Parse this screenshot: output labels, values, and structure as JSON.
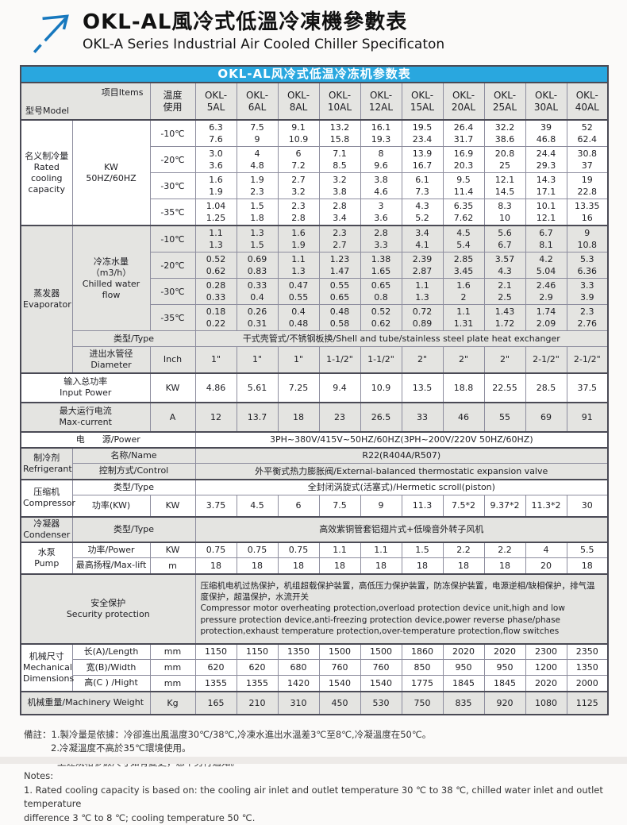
{
  "page": {
    "title_zh": "OKL-AL風冷式低溫冷凍機參數表",
    "title_en": "OKL-A Series Industrial Air Cooled Chiller Specificaton"
  },
  "colors": {
    "accent_blue": "#29a7df",
    "logo_blue": "#1778be",
    "row_gray": "#e4e4e1"
  },
  "table": {
    "banner": "OKL-AL风冷式低温冷冻机参数表",
    "header": {
      "model_label": "型号Model",
      "items_label": "项目Items",
      "temp_label": "温度\n使用",
      "models": [
        "OKL-\n5AL",
        "OKL-\n6AL",
        "OKL-\n8AL",
        "OKL-\n10AL",
        "OKL-\n12AL",
        "OKL-\n15AL",
        "OKL-\n20AL",
        "OKL-\n25AL",
        "OKL-\n30AL",
        "OKL-\n40AL"
      ]
    },
    "rated": {
      "label": "名义制冷量\nRated\ncooling\ncapacity",
      "unit": "KW\n50HZ/60HZ",
      "temps": [
        "-10℃",
        "-20℃",
        "-30℃",
        "-35℃"
      ],
      "r10": [
        "6.3\n7.6",
        "7.5\n9",
        "9.1\n10.9",
        "13.2\n15.8",
        "16.1\n19.3",
        "19.5\n23.4",
        "26.4\n31.7",
        "32.2\n38.6",
        "39\n46.8",
        "52\n62.4"
      ],
      "r20": [
        "3.0\n3.6",
        "4\n4.8",
        "6\n7.2",
        "7.1\n8.5",
        "8\n9.6",
        "13.9\n16.7",
        "16.9\n20.3",
        "20.8\n25",
        "24.4\n29.3",
        "30.8\n37"
      ],
      "r30": [
        "1.6\n1.9",
        "1.9\n2.3",
        "2.7\n3.2",
        "3.2\n3.8",
        "3.8\n4.6",
        "6.1\n7.3",
        "9.5\n11.4",
        "12.1\n14.5",
        "14.3\n17.1",
        "19\n22.8"
      ],
      "r35": [
        "1.04\n1.25",
        "1.5\n1.8",
        "2.3\n2.8",
        "2.8\n3.4",
        "3\n3.6",
        "4.3\n5.2",
        "6.35\n7.62",
        "8.3\n10",
        "10.1\n12.1",
        "13.35\n16"
      ]
    },
    "evaporator": {
      "label": "蒸发器\nEvaporator",
      "flow_label": "冷冻水量（m3/h）\nChilled water flow",
      "temps": [
        "-10℃",
        "-20℃",
        "-30℃",
        "-35℃"
      ],
      "f10": [
        "1.1\n1.3",
        "1.3\n1.5",
        "1.6\n1.9",
        "2.3\n2.7",
        "2.8\n3.3",
        "3.4\n4.1",
        "4.5\n5.4",
        "5.6\n6.7",
        "6.7\n8.1",
        "9\n10.8"
      ],
      "f20": [
        "0.52\n0.62",
        "0.69\n0.83",
        "1.1\n1.3",
        "1.23\n1.47",
        "1.38\n1.65",
        "2.39\n2.87",
        "2.85\n3.45",
        "3.57\n4.3",
        "4.2\n5.04",
        "5.3\n6.36"
      ],
      "f30": [
        "0.28\n0.33",
        "0.33\n0.4",
        "0.47\n0.55",
        "0.55\n0.65",
        "0.65\n0.8",
        "1.1\n1.3",
        "1.6\n2",
        "2.1\n2.5",
        "2.46\n2.9",
        "3.3\n3.9"
      ],
      "f35": [
        "0.18\n0.22",
        "0.26\n0.31",
        "0.4\n0.48",
        "0.48\n0.58",
        "0.52\n0.62",
        "0.72\n0.89",
        "1.1\n1.31",
        "1.43\n1.72",
        "1.74\n2.09",
        "2.3\n2.76"
      ],
      "type_label": "类型/Type",
      "type_value": "干式壳管式/不锈钢板换/Shell and tube/stainless steel plate heat exchanger",
      "diameter_label": "进出水管径\nDiameter",
      "diameter_unit": "Inch",
      "diameter_values": [
        "1\"",
        "1\"",
        "1\"",
        "1-1/2\"",
        "1-1/2\"",
        "2\"",
        "2\"",
        "2\"",
        "2-1/2\"",
        "2-1/2\""
      ]
    },
    "input_power": {
      "label": "输入总功率\nInput Power",
      "unit": "KW",
      "values": [
        "4.86",
        "5.61",
        "7.25",
        "9.4",
        "10.9",
        "13.5",
        "18.8",
        "22.55",
        "28.5",
        "37.5"
      ]
    },
    "max_current": {
      "label": "最大运行电流\nMax-current",
      "unit": "A",
      "values": [
        "12",
        "13.7",
        "18",
        "23",
        "26.5",
        "33",
        "46",
        "55",
        "69",
        "91"
      ]
    },
    "power_supply": {
      "label": "电　　源/Power",
      "value": "3PH~380V/415V~50HZ/60HZ(3PH~200V/220V  50HZ/60HZ)"
    },
    "refrigerant": {
      "label": "制冷剂\nRefrigerant",
      "name_label": "名称/Name",
      "name_value": "R22(R404A/R507)",
      "control_label": "控制方式/Control",
      "control_value": "外平衡式热力膨胀阀/External-balanced thermostatic expansion valve"
    },
    "compressor": {
      "label": "压缩机\nCompressor",
      "type_label": "类型/Type",
      "type_value": "全封闭涡旋式(活塞式)/Hermetic scroll(piston)",
      "power_label": "功率(KW)",
      "power_unit": "KW",
      "power_values": [
        "3.75",
        "4.5",
        "6",
        "7.5",
        "9",
        "11.3",
        "7.5*2",
        "9.37*2",
        "11.3*2",
        "30"
      ]
    },
    "condenser": {
      "label": "冷凝器\nCondenser",
      "type_label": "类型/Type",
      "type_value": "高效紫铜管套铝翅片式+低噪音外转子风机"
    },
    "pump": {
      "label": "水泵\nPump",
      "power_label": "功率/Power",
      "power_unit": "KW",
      "power_values": [
        "0.75",
        "0.75",
        "0.75",
        "1.1",
        "1.1",
        "1.5",
        "2.2",
        "2.2",
        "4",
        "5.5"
      ],
      "lift_label": "最高扬程/Max-lift",
      "lift_unit": "m",
      "lift_values": [
        "18",
        "18",
        "18",
        "18",
        "18",
        "18",
        "18",
        "18",
        "20",
        "18"
      ]
    },
    "security": {
      "label": "安全保护\nSecurity protection",
      "text": "压缩机电机过热保护，机组超载保护装置，高低压力保护装置，防冻保护装置，电源逆相/缺相保护，排气温度保护，超温保护，水流开关\n Compressor motor overheating protection,overload protection device unit,high and low pressure protection device,anti-freezing protection device,power reverse phase/phase protection,exhaust temperature protection,over-temperature protection,flow switches"
    },
    "mechanical": {
      "label": "机械尺寸\nMechanical\nDimensions",
      "length_label": "长(A)/Length",
      "length_unit": "mm",
      "length_values": [
        "1150",
        "1150",
        "1350",
        "1500",
        "1500",
        "1860",
        "2020",
        "2020",
        "2300",
        "2350"
      ],
      "width_label": "宽(B)/Width",
      "width_unit": "mm",
      "width_values": [
        "620",
        "620",
        "680",
        "760",
        "760",
        "850",
        "950",
        "950",
        "1200",
        "1350"
      ],
      "height_label": "高(C ) /Hight",
      "height_unit": "mm",
      "height_values": [
        "1355",
        "1355",
        "1420",
        "1540",
        "1540",
        "1775",
        "1845",
        "1845",
        "2020",
        "2000"
      ]
    },
    "weight": {
      "label": "机械重量/Machinery Weight",
      "unit": "Kg",
      "values": [
        "165",
        "210",
        "310",
        "450",
        "530",
        "750",
        "835",
        "920",
        "1080",
        "1125"
      ]
    }
  },
  "notes": [
    "備註：1.製冷量是依據：冷卻進出風溫度30℃/38℃,冷凍水進出水溫差3℃至8℃,冷凝溫度在50℃。",
    "2.冷凝溫度不高於35℃環境使用。",
    "上述規格參數尺寸如有變更，恕不另行通知。",
    "Notes:",
    "1. Rated cooling capacity is based on: the cooling air inlet and outlet temperature 30 ℃ to 38 ℃, chilled water inlet and outlet temperature",
    "difference 3 ℃ to 8 ℃; cooling temperature 50 ℃."
  ]
}
